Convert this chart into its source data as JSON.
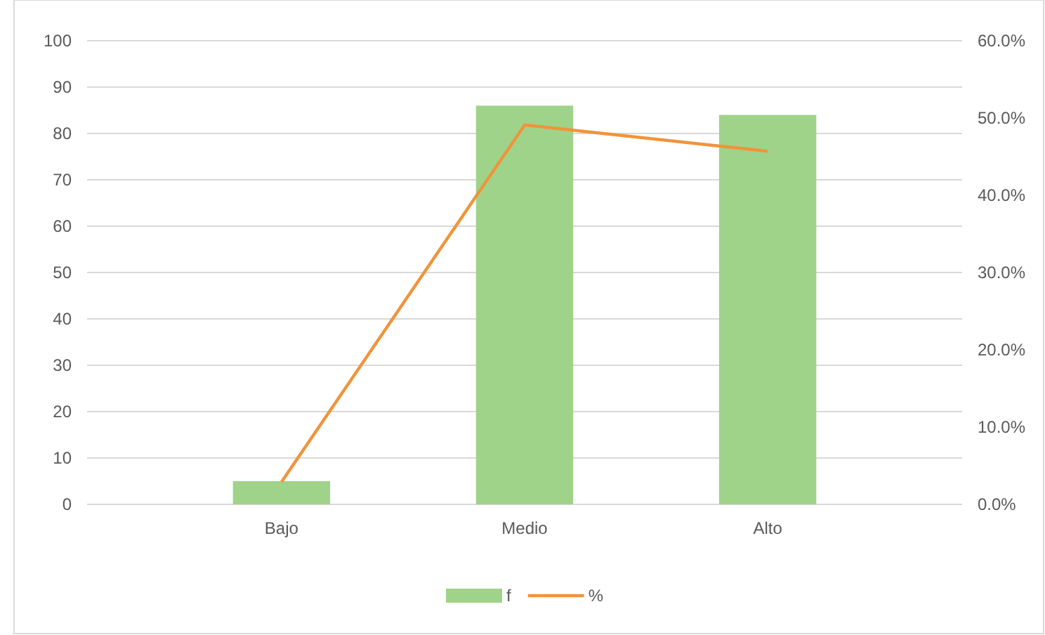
{
  "chart_data": {
    "type": "bar",
    "categories": [
      "Bajo",
      "Medio",
      "Alto"
    ],
    "series": [
      {
        "name": "f",
        "color": "#9fd38a",
        "values": [
          5,
          86,
          84
        ]
      },
      {
        "name": "%",
        "type": "line",
        "axis": "y2",
        "color": "#f0943a",
        "values": [
          2.9,
          49.1,
          45.7
        ]
      }
    ],
    "ylim": [
      0,
      100
    ],
    "yticks": [
      0,
      10,
      20,
      30,
      40,
      50,
      60,
      70,
      80,
      90,
      100
    ],
    "y2lim": [
      0,
      60
    ],
    "y2ticks": [
      {
        "value": 0,
        "label": "0.0%"
      },
      {
        "value": 10,
        "label": "10.0%"
      },
      {
        "value": 20,
        "label": "20.0%"
      },
      {
        "value": 30,
        "label": "30.0%"
      },
      {
        "value": 40,
        "label": "40.0%"
      },
      {
        "value": 50,
        "label": "50.0%"
      },
      {
        "value": 60,
        "label": "60.0%"
      }
    ],
    "grid": "y",
    "legend": "bottom",
    "marker": "none",
    "line_style": "solid"
  }
}
